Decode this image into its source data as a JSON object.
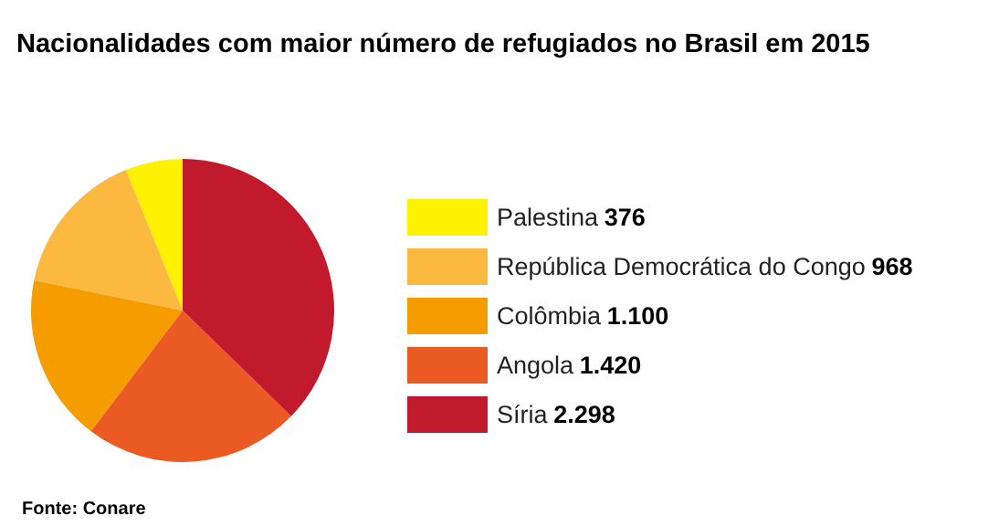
{
  "chart_data": {
    "type": "pie",
    "title": "Nacionalidades com maior número de refugiados no Brasil em 2015",
    "categories": [
      "Palestina",
      "República Democrática do Congo",
      "Colômbia",
      "Angola",
      "Síria"
    ],
    "values": [
      376,
      968,
      1100,
      1420,
      2298
    ],
    "value_labels": [
      "376",
      "968",
      "1.100",
      "1.420",
      "2.298"
    ],
    "colors": [
      "#fff200",
      "#fbb93f",
      "#f59c00",
      "#ec5a24",
      "#c01a2c"
    ],
    "legend": "right",
    "annotations": [
      "Fonte: Conare"
    ]
  }
}
